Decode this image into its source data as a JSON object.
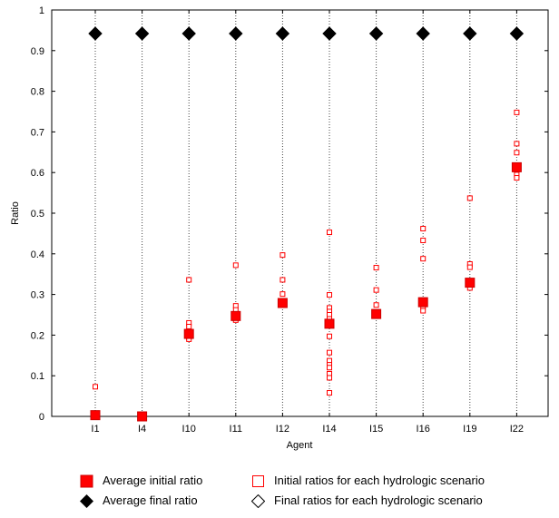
{
  "chart_data": {
    "type": "scatter",
    "title": "",
    "xlabel": "Agent",
    "ylabel": "Ratio",
    "categories": [
      "I1",
      "I4",
      "I10",
      "I11",
      "I12",
      "I14",
      "I15",
      "I16",
      "I19",
      "I22"
    ],
    "ylim": [
      0,
      1
    ],
    "yticks": [
      "0",
      "0.1",
      "0.2",
      "0.3",
      "0.4",
      "0.5",
      "0.6",
      "0.7",
      "0.8",
      "0.9",
      "1"
    ],
    "grid": "vertical dotted lines at each agent",
    "legend_position": "bottom",
    "series": [
      {
        "name": "Average initial ratio",
        "marker": "filled-square",
        "color": "#ff0000",
        "values": [
          0.003,
          0.0,
          0.203,
          0.247,
          0.279,
          0.228,
          0.252,
          0.281,
          0.329,
          0.613
        ]
      },
      {
        "name": "Initial ratios for each hydrologic scenario",
        "marker": "open-square",
        "color": "#ff0000",
        "values": [
          [
            0.073,
            0.0
          ],
          [
            0.0
          ],
          [
            0.336,
            0.23,
            0.221,
            0.21,
            0.195,
            0.19
          ],
          [
            0.372,
            0.272,
            0.262,
            0.25,
            0.24,
            0.237
          ],
          [
            0.397,
            0.336,
            0.301,
            0.282,
            0.274
          ],
          [
            0.453,
            0.299,
            0.267,
            0.258,
            0.25,
            0.24,
            0.228,
            0.197,
            0.157,
            0.137,
            0.127,
            0.12,
            0.105,
            0.095,
            0.058
          ],
          [
            0.366,
            0.311,
            0.274,
            0.255,
            0.248
          ],
          [
            0.462,
            0.433,
            0.388,
            0.283,
            0.27,
            0.26
          ],
          [
            0.537,
            0.375,
            0.367,
            0.33,
            0.316
          ],
          [
            0.748,
            0.671,
            0.649,
            0.612,
            0.595,
            0.587
          ]
        ]
      },
      {
        "name": "Average final ratio",
        "marker": "filled-diamond",
        "color": "#000000",
        "values": [
          0.942,
          0.942,
          0.942,
          0.942,
          0.942,
          0.942,
          0.942,
          0.942,
          0.942,
          0.942
        ]
      },
      {
        "name": "Final ratios for each hydrologic scenario",
        "marker": "open-diamond",
        "color": "#000000",
        "values": [
          [
            0.942
          ],
          [
            0.942
          ],
          [
            0.942
          ],
          [
            0.942
          ],
          [
            0.942
          ],
          [
            0.942
          ],
          [
            0.942
          ],
          [
            0.942
          ],
          [
            0.942
          ],
          [
            0.942
          ]
        ]
      }
    ]
  },
  "legend": {
    "avg_initial": "Average initial ratio",
    "init_each": "Initial ratios for each hydrologic scenario",
    "avg_final": "Average final ratio",
    "final_each": "Final ratios for each hydrologic scenario"
  }
}
